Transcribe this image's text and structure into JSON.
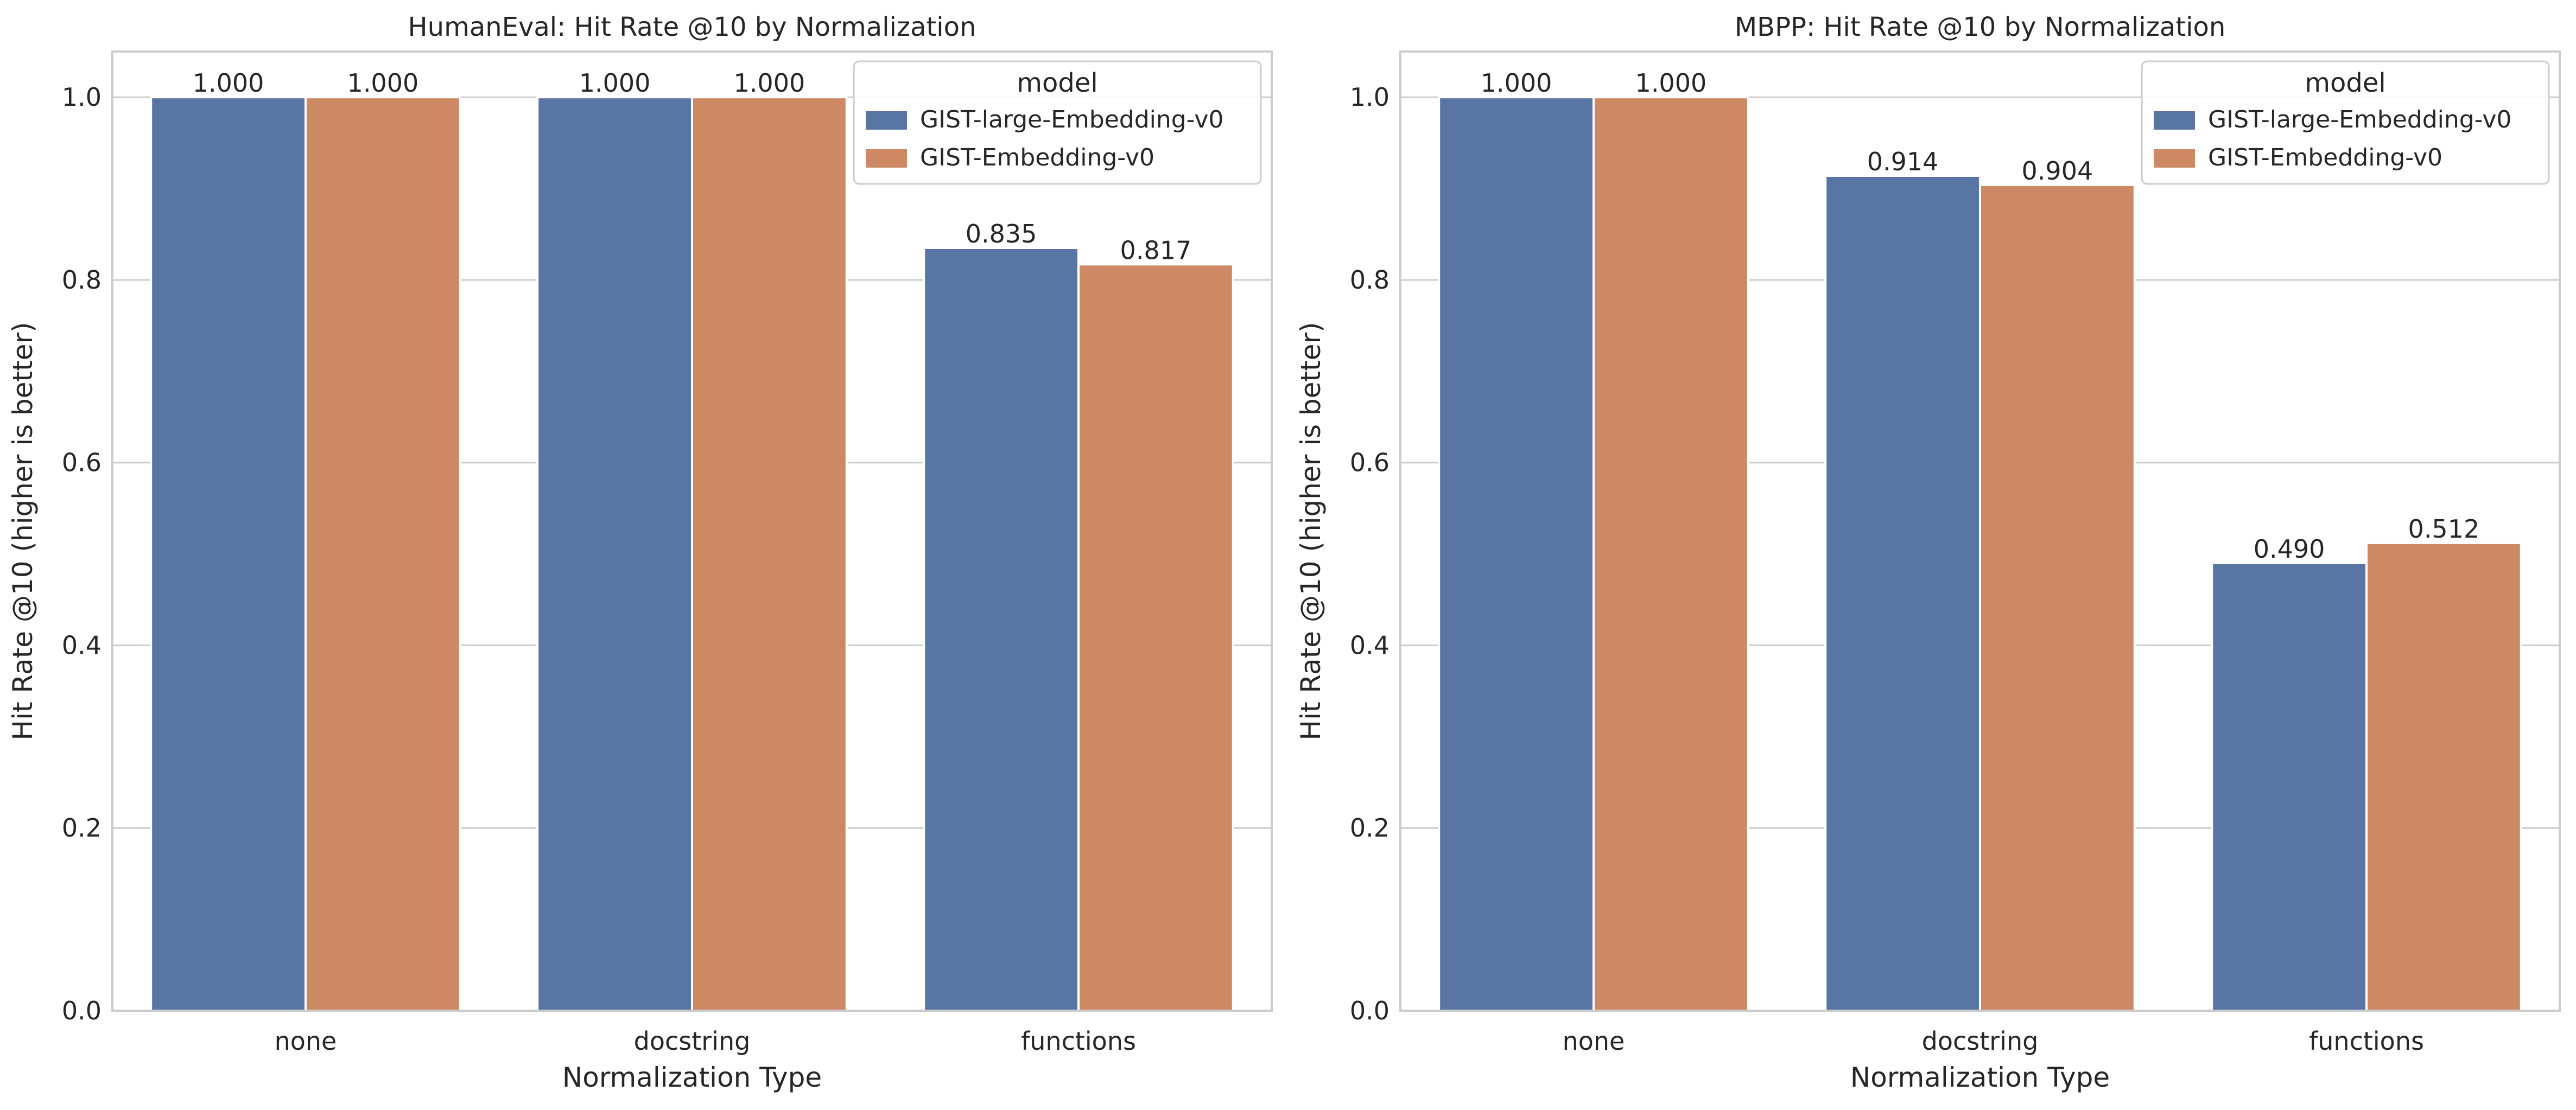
{
  "chart_data": [
    {
      "type": "bar",
      "title": "HumanEval: Hit Rate @10 by Normalization",
      "xlabel": "Normalization Type",
      "ylabel": "Hit Rate @10 (higher is better)",
      "ylim": [
        0,
        1.05
      ],
      "yticks": [
        0.0,
        0.2,
        0.4,
        0.6,
        0.8,
        1.0
      ],
      "ytick_labels": [
        "0.0",
        "0.2",
        "0.4",
        "0.6",
        "0.8",
        "1.0"
      ],
      "grid": "y",
      "categories": [
        "none",
        "docstring",
        "functions"
      ],
      "legend": {
        "title": "model",
        "placement": "top-right"
      },
      "series": [
        {
          "name": "GIST-large-Embedding-v0",
          "color": "#5975a4",
          "values": [
            1.0,
            1.0,
            0.835
          ],
          "labels": [
            "1.000",
            "1.000",
            "0.835"
          ]
        },
        {
          "name": "GIST-Embedding-v0",
          "color": "#cc8963",
          "values": [
            1.0,
            1.0,
            0.817
          ],
          "labels": [
            "1.000",
            "1.000",
            "0.817"
          ]
        }
      ]
    },
    {
      "type": "bar",
      "title": "MBPP: Hit Rate @10 by Normalization",
      "xlabel": "Normalization Type",
      "ylabel": "Hit Rate @10 (higher is better)",
      "ylim": [
        0,
        1.05
      ],
      "yticks": [
        0.0,
        0.2,
        0.4,
        0.6,
        0.8,
        1.0
      ],
      "ytick_labels": [
        "0.0",
        "0.2",
        "0.4",
        "0.6",
        "0.8",
        "1.0"
      ],
      "grid": "y",
      "categories": [
        "none",
        "docstring",
        "functions"
      ],
      "legend": {
        "title": "model",
        "placement": "top-right"
      },
      "series": [
        {
          "name": "GIST-large-Embedding-v0",
          "color": "#5975a4",
          "values": [
            1.0,
            0.914,
            0.49
          ],
          "labels": [
            "1.000",
            "0.914",
            "0.490"
          ]
        },
        {
          "name": "GIST-Embedding-v0",
          "color": "#cc8963",
          "values": [
            1.0,
            0.904,
            0.512
          ],
          "labels": [
            "1.000",
            "0.904",
            "0.512"
          ]
        }
      ]
    }
  ]
}
